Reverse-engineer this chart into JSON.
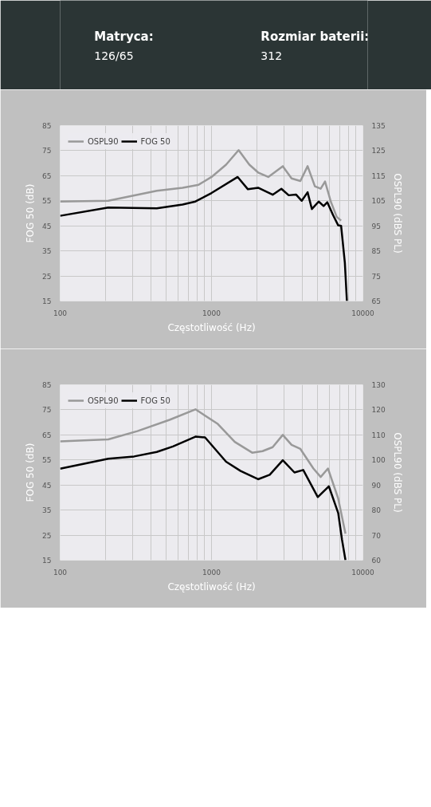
{
  "chart_data": [
    {
      "type": "other",
      "annotations": [
        "Matryca:",
        "126/65",
        "Rozmiar baterii:",
        "312"
      ]
    },
    {
      "type": "line",
      "xlabel": "Częstotliwość (Hz)",
      "ylabel": "FOG 50 (dB)",
      "y2label": "OSPL90 (dBS PL)",
      "log": "x",
      "xlim": [
        100,
        10000
      ],
      "xticks": [
        100,
        1000,
        10000
      ],
      "ylim": [
        15,
        85
      ],
      "yticks": [
        15,
        25,
        35,
        45,
        55,
        65,
        75,
        85
      ],
      "y2lim": [
        65,
        135
      ],
      "y2ticks": [
        65,
        75,
        85,
        95,
        105,
        115,
        125,
        135
      ],
      "grid": true,
      "legend": "top left",
      "series": [
        {
          "name": "OSPL90",
          "color": "#999999",
          "axis": "y2",
          "x": [
            100,
            208,
            324,
            435,
            644,
            822,
            1000,
            1248,
            1510,
            1778,
            2031,
            2371,
            2957,
            3380,
            3864,
            4313,
            4819,
            5263,
            5623,
            6138,
            6714,
            7180
          ],
          "values": [
            104.7,
            105,
            107.4,
            109,
            110.2,
            111.4,
            114.5,
            119.4,
            125.2,
            119.4,
            116.3,
            114.5,
            118.8,
            113.9,
            112.9,
            118.8,
            110.8,
            109.8,
            112.7,
            104.7,
            98.6,
            97.1
          ]
        },
        {
          "name": "FOG 50",
          "color": "#000000",
          "x": [
            100,
            208,
            435,
            644,
            783,
            1000,
            1489,
            1740,
            2031,
            2535,
            2894,
            3236,
            3614,
            3945,
            4313,
            4603,
            5105,
            5500,
            5822,
            6363,
            6871,
            7180,
            7600,
            7840
          ],
          "values": [
            49.0,
            52.3,
            52.0,
            53.5,
            54.7,
            58.1,
            64.5,
            59.6,
            60.2,
            57.4,
            59.8,
            57.2,
            57.5,
            55,
            58.4,
            51.7,
            54.7,
            52.9,
            54.4,
            49.2,
            45.2,
            45,
            30.3,
            15
          ]
        }
      ]
    },
    {
      "type": "line",
      "xlabel": "Częstotliwość (Hz)",
      "ylabel": "FOG 50 (dB)",
      "y2label": "OSPL90 (dBS PL)",
      "log": "x",
      "xlim": [
        100,
        10000
      ],
      "xticks": [
        100,
        1000,
        10000
      ],
      "ylim": [
        15,
        85
      ],
      "yticks": [
        15,
        25,
        35,
        45,
        55,
        65,
        75,
        85
      ],
      "y2lim": [
        60,
        130
      ],
      "y2ticks": [
        60,
        70,
        80,
        90,
        100,
        110,
        120,
        130
      ],
      "grid": true,
      "legend": "top left",
      "series": [
        {
          "name": "OSPL90",
          "color": "#999999",
          "axis": "y2",
          "x": [
            100,
            208,
            324,
            528,
            783,
            1093,
            1424,
            1856,
            2173,
            2535,
            2957,
            3380,
            3864,
            4710,
            5263,
            5879,
            6871,
            7674
          ],
          "values": [
            107.4,
            108.2,
            111.5,
            116,
            120.2,
            114.5,
            107.2,
            102.9,
            103.5,
            105.1,
            110,
            106,
            104.4,
            96.6,
            93.2,
            96.6,
            84.6,
            70.6
          ]
        },
        {
          "name": "FOG 50",
          "color": "#000000",
          "x": [
            100,
            208,
            308,
            435,
            556,
            783,
            906,
            1248,
            1557,
            2031,
            2424,
            2957,
            3532,
            4036,
            5035,
            5957,
            6871,
            7278,
            7674
          ],
          "values": [
            51.5,
            55.5,
            56.4,
            58.2,
            60.4,
            64.3,
            64.0,
            54.3,
            50.6,
            47.3,
            49.1,
            54.9,
            50.0,
            51.0,
            40.2,
            44.5,
            33.8,
            23.2,
            15
          ]
        }
      ]
    }
  ]
}
